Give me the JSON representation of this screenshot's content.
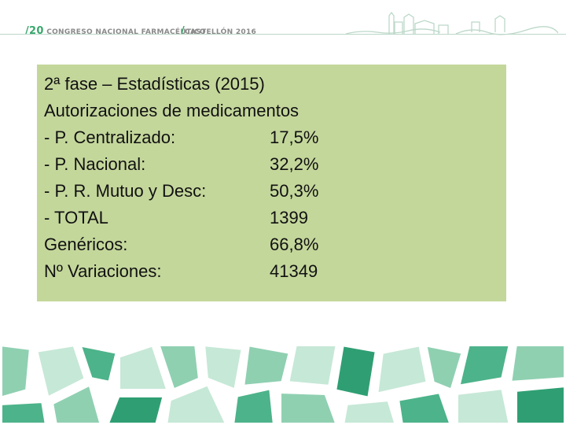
{
  "header": {
    "congress_number": "/20",
    "congress_label": "CONGRESO NACIONAL FARMACÉUTICO",
    "city_slash": "/",
    "city_label": "CASTELLÓN 2016"
  },
  "info": {
    "title": "2ª fase – Estadísticas (2015)",
    "subtitle": "Autorizaciones de medicamentos",
    "rows": [
      {
        "label": "-  P. Centralizado:",
        "value": "17,5%"
      },
      {
        "label": "- P. Nacional:",
        "value": "32,2%"
      },
      {
        "label": "- P. R. Mutuo y Desc:",
        "value": "50,3%"
      },
      {
        "label": "- TOTAL",
        "value": "1399"
      },
      {
        "label": "Genéricos:",
        "value": "66,8%"
      },
      {
        "label": "Nº Variaciones:",
        "value": "41349"
      }
    ]
  },
  "colors": {
    "box_background": "#c4d79b",
    "accent_green": "#3aa76d",
    "mosaic_greens": [
      "#4db38a",
      "#8fd0b1",
      "#c6e8d7",
      "#2f9f73"
    ]
  }
}
